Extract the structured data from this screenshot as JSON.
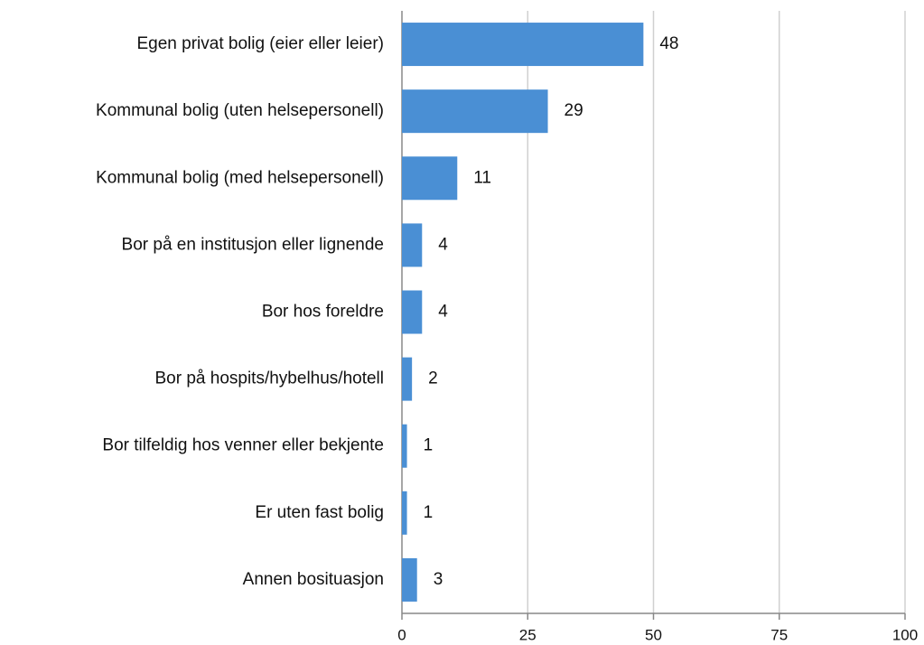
{
  "chart_data": {
    "type": "bar",
    "orientation": "horizontal",
    "categories": [
      "Egen privat bolig (eier eller leier)",
      "Kommunal bolig (uten helsepersonell)",
      "Kommunal bolig (med helsepersonell)",
      "Bor på en institusjon eller lignende",
      "Bor hos foreldre",
      "Bor på hospits/hybelhus/hotell",
      "Bor tilfeldig hos venner eller bekjente",
      "Er uten fast bolig",
      "Annen bosituasjon"
    ],
    "values": [
      48,
      29,
      11,
      4,
      4,
      2,
      1,
      1,
      3
    ],
    "color": "#4a8fd4",
    "xlim": [
      0,
      100
    ],
    "xticks": [
      0,
      25,
      50,
      75,
      100
    ],
    "grid": true
  }
}
